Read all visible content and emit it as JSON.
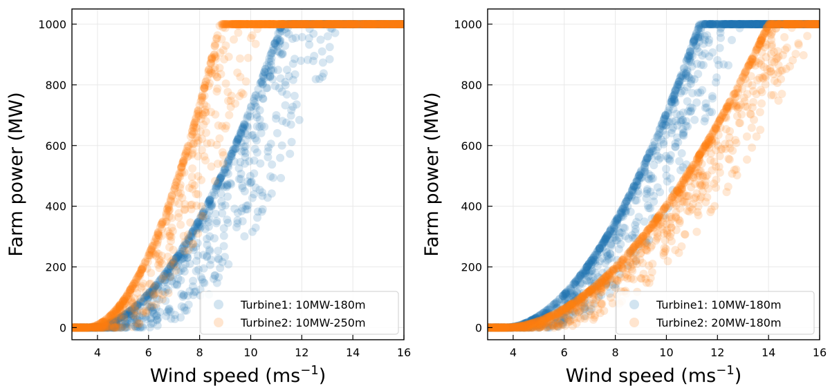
{
  "chart_data": [
    {
      "type": "scatter",
      "title": "",
      "xlabel": "Wind speed (ms",
      "xlabel_superscript": "−1",
      "xlabel_suffix": ")",
      "ylabel": "Farm power (MW)",
      "xlim": [
        3,
        16
      ],
      "ylim": [
        -40,
        1050
      ],
      "xticks": [
        4,
        6,
        8,
        10,
        12,
        14,
        16
      ],
      "yticks": [
        0,
        200,
        400,
        600,
        800,
        1000
      ],
      "grid": true,
      "legend_position": "lower-right",
      "series": [
        {
          "name": "Turbine1: 10MW-180m",
          "color": "#1f77b4",
          "cut_in": 3.7,
          "rated_speed": 11.2,
          "rated_power": 1000,
          "spread_max": 2.4
        },
        {
          "name": "Turbine2: 10MW-250m",
          "color": "#ff7f0e",
          "cut_in": 3.6,
          "rated_speed": 8.8,
          "rated_power": 1000,
          "spread_max": 1.6
        }
      ]
    },
    {
      "type": "scatter",
      "title": "",
      "xlabel": "Wind speed (ms",
      "xlabel_superscript": "−1",
      "xlabel_suffix": ")",
      "ylabel": "Farm power (MW)",
      "xlim": [
        3,
        16
      ],
      "ylim": [
        -40,
        1050
      ],
      "xticks": [
        4,
        6,
        8,
        10,
        12,
        14,
        16
      ],
      "yticks": [
        0,
        200,
        400,
        600,
        800,
        1000
      ],
      "grid": true,
      "legend_position": "lower-right",
      "series": [
        {
          "name": "Turbine1: 10MW-180m",
          "color": "#1f77b4",
          "cut_in": 3.7,
          "rated_speed": 11.3,
          "rated_power": 1000,
          "spread_max": 1.8
        },
        {
          "name": "Turbine2: 20MW-180m",
          "color": "#ff7f0e",
          "cut_in": 3.7,
          "rated_speed": 14.0,
          "rated_power": 1000,
          "spread_max": 2.0
        }
      ]
    }
  ]
}
